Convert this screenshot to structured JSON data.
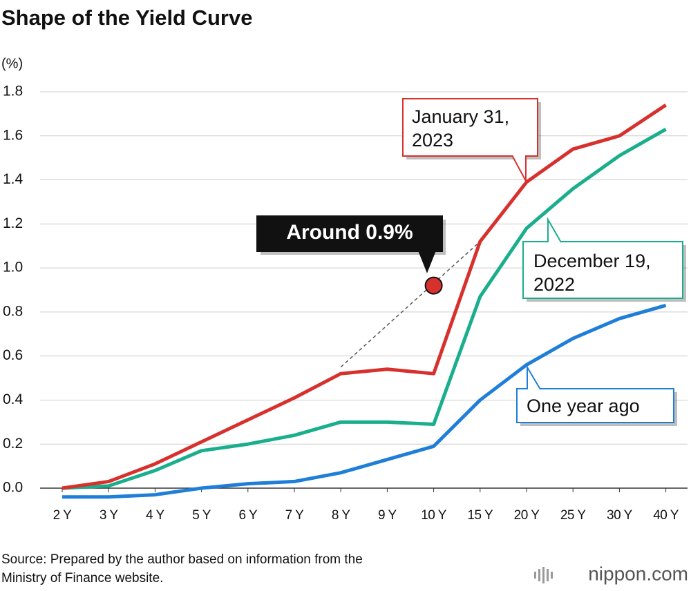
{
  "chart_data": {
    "type": "line",
    "title": "Shape of the Yield Curve",
    "y_unit": "(%)",
    "categories": [
      "2 Y",
      "3 Y",
      "4 Y",
      "5 Y",
      "6 Y",
      "7 Y",
      "8 Y",
      "9 Y",
      "10 Y",
      "15 Y",
      "20 Y",
      "25 Y",
      "30 Y",
      "40 Y"
    ],
    "series": [
      {
        "name": "January 31, 2023",
        "color": "#d7312e",
        "values": [
          0.0,
          0.03,
          0.11,
          0.21,
          0.31,
          0.41,
          0.52,
          0.54,
          0.52,
          1.12,
          1.39,
          1.54,
          1.6,
          1.74
        ]
      },
      {
        "name": "December 19, 2022",
        "color": "#1aae8c",
        "values": [
          0.0,
          0.01,
          0.08,
          0.17,
          0.2,
          0.24,
          0.3,
          0.3,
          0.29,
          0.87,
          1.18,
          1.36,
          1.51,
          1.63
        ]
      },
      {
        "name": "One year ago",
        "color": "#1f7fd8",
        "values": [
          -0.04,
          -0.04,
          -0.03,
          0.0,
          0.02,
          0.03,
          0.07,
          0.13,
          0.19,
          0.4,
          0.56,
          0.68,
          0.77,
          0.83
        ]
      }
    ],
    "ylim": [
      0,
      1.8
    ],
    "yticks": [
      {
        "value": 0,
        "label": "0.0"
      },
      0.2,
      0.4,
      0.6,
      0.8,
      {
        "value": 1,
        "label": "1.0"
      },
      1.2,
      1.4,
      1.6,
      1.8
    ],
    "grid": true,
    "annotation": {
      "label": "Around 0.9%",
      "x": "10 Y",
      "y": 0.92,
      "color": "#d7312e"
    },
    "dashed_line": {
      "x": [
        "8 Y",
        "15 Y"
      ],
      "y": [
        0.55,
        1.12
      ]
    },
    "source": [
      "Source: Prepared by the author based on information from the",
      "Ministry of Finance website."
    ],
    "logo": "nippon.com"
  }
}
